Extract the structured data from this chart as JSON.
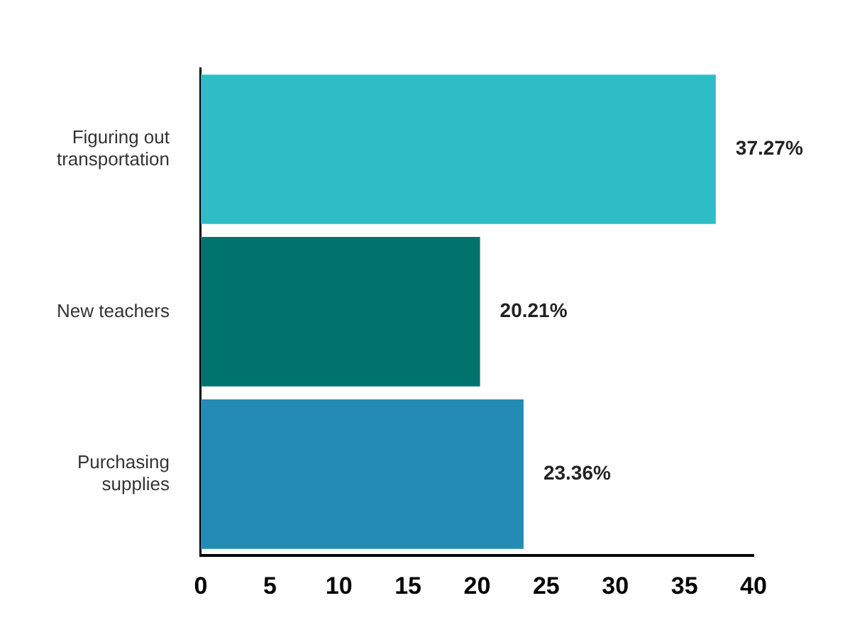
{
  "chart_data": {
    "type": "bar",
    "orientation": "horizontal",
    "categories": [
      "Figuring out transportation",
      "New teachers",
      "Purchasing supplies"
    ],
    "values": [
      37.27,
      20.21,
      23.36
    ],
    "colors": [
      "#2ebcc6",
      "#00736d",
      "#238bb6"
    ],
    "value_labels": [
      "37.27%",
      "20.21%",
      "23.36%"
    ],
    "xlim": [
      0,
      40
    ],
    "xticks": [
      0,
      5,
      10,
      15,
      20,
      25,
      30,
      35,
      40
    ],
    "grid": false,
    "legend": false
  }
}
